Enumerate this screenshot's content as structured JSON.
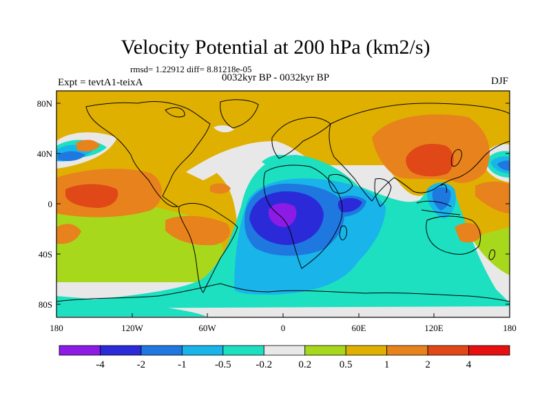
{
  "title": "Velocity Potential at 200 hPa (km2/s)",
  "stats": "rmsd= 1.22912 diff= 8.81218e-05",
  "experiment": "Expt = tevtA1-teixA",
  "period": "0032kyr BP - 0032kyr BP",
  "season": "DJF",
  "lat_labels": [
    "80N",
    "40N",
    "0",
    "40S",
    "80S"
  ],
  "lon_labels": [
    "180",
    "120W",
    "60W",
    "0",
    "60E",
    "120E",
    "180"
  ],
  "colorbar": {
    "levels": [
      "-4",
      "-2",
      "-1",
      "-0.5",
      "-0.2",
      "0.2",
      "0.5",
      "1",
      "2",
      "4"
    ],
    "colors": [
      "#8c1be6",
      "#2a2ad9",
      "#1e78e0",
      "#18b4ea",
      "#1ce0c0",
      "#e8e8e8",
      "#a8d81c",
      "#e0b000",
      "#e8821c",
      "#e04818",
      "#e61010"
    ]
  }
}
